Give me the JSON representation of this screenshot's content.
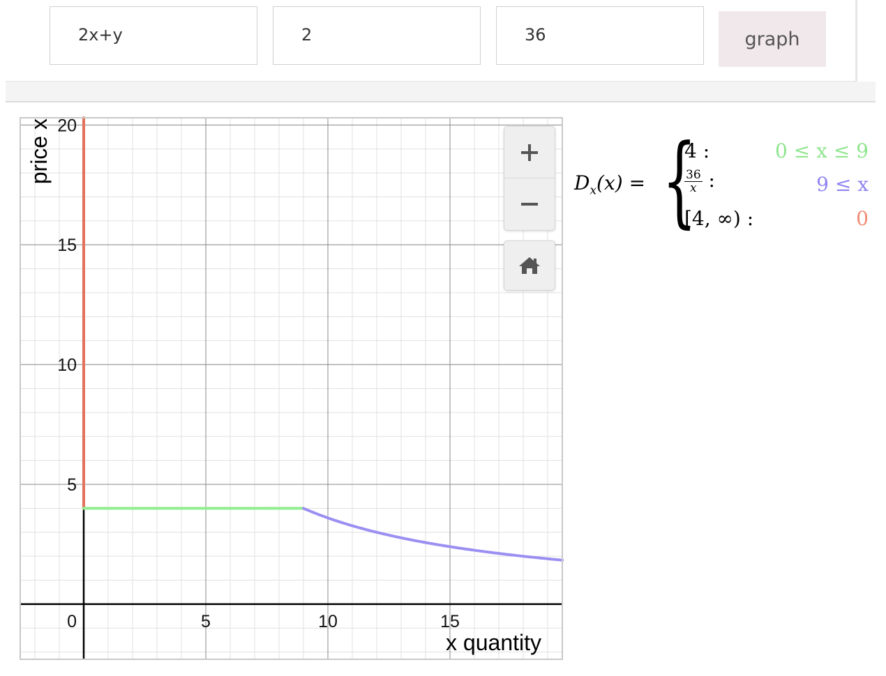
{
  "inputs": {
    "expression": "2x+y",
    "param1": "2",
    "param2": "36"
  },
  "graph_button": {
    "label": "graph"
  },
  "chart_data": {
    "type": "line",
    "xlabel": "x quantity",
    "ylabel": "price x",
    "xlim": [
      -2.6,
      19.6
    ],
    "ylim": [
      -2.3,
      20.3
    ],
    "x_ticks": [
      0,
      5,
      10,
      15
    ],
    "y_ticks": [
      5,
      10,
      15,
      20
    ],
    "grid": true,
    "series": [
      {
        "color": "#e2725b",
        "x": [
          0,
          0
        ],
        "y": [
          4,
          20.3
        ]
      },
      {
        "color": "#90ee90",
        "x": [
          0,
          9
        ],
        "y": [
          4,
          4
        ]
      },
      {
        "color": "#9b8ff2",
        "function": "36/x",
        "x": [
          9,
          19.6
        ]
      }
    ]
  },
  "controls": {
    "zoom_in": "+",
    "zoom_out": "−",
    "home": "home-icon"
  },
  "formula": {
    "lhs": "D",
    "lhs_sub": "x",
    "lhs_arg": "(x) =",
    "rows": [
      {
        "expr": "4 :",
        "cond": "0 ≤ x ≤ 9",
        "color": "#8ee58e"
      },
      {
        "expr_num": "36",
        "expr_den": "x",
        "expr_tail": " :",
        "cond": "9 ≤ x",
        "color": "#8f84f0"
      },
      {
        "expr": "[4, ∞) :",
        "cond": "0",
        "color": "#f08a74"
      }
    ]
  }
}
